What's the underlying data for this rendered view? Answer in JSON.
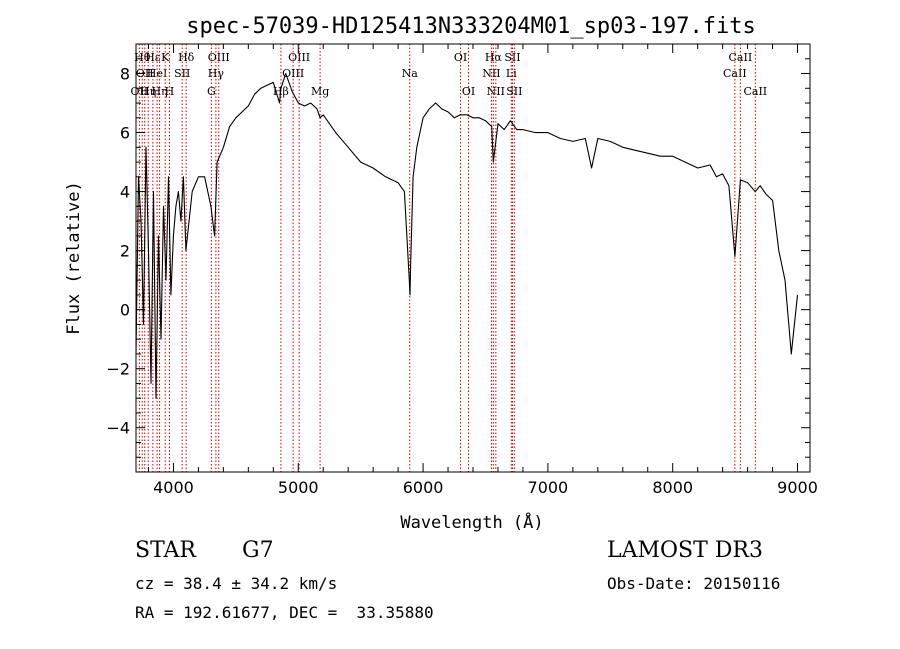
{
  "chart_data": {
    "type": "line",
    "title": "spec-57039-HD125413N333204M01_sp03-197.fits",
    "xlabel": "Wavelength (Å)",
    "ylabel": "Flux (relative)",
    "xlim": [
      3700,
      9100
    ],
    "ylim": [
      -5.5,
      9.0
    ],
    "xticks": [
      4000,
      5000,
      6000,
      7000,
      8000,
      9000
    ],
    "yticks": [
      -4,
      -2,
      0,
      2,
      4,
      6,
      8
    ],
    "grid": false,
    "legend": "none",
    "line_color": "#000000",
    "marker_color": "#cc0000",
    "series": [
      {
        "x": [
          3700,
          3720,
          3740,
          3760,
          3780,
          3800,
          3820,
          3840,
          3860,
          3880,
          3900,
          3920,
          3940,
          3960,
          3980,
          4000,
          4020,
          4040,
          4060,
          4080,
          4100,
          4150,
          4200,
          4250,
          4300,
          4330,
          4350,
          4400,
          4450,
          4500,
          4550,
          4600,
          4650,
          4700,
          4750,
          4800,
          4850,
          4861,
          4900,
          4950,
          5000,
          5050,
          5100,
          5150,
          5175,
          5200,
          5300,
          5400,
          5500,
          5600,
          5700,
          5800,
          5850,
          5890,
          5895,
          5900,
          5920,
          5950,
          6000,
          6050,
          6100,
          6150,
          6200,
          6250,
          6300,
          6350,
          6400,
          6450,
          6500,
          6550,
          6563,
          6600,
          6650,
          6700,
          6750,
          6800,
          6900,
          7000,
          7100,
          7200,
          7300,
          7350,
          7400,
          7500,
          7600,
          7700,
          7800,
          7900,
          8000,
          8100,
          8200,
          8300,
          8350,
          8400,
          8450,
          8498,
          8542,
          8600,
          8662,
          8700,
          8750,
          8800,
          8850,
          8900,
          8950,
          9000
        ],
        "y": [
          -1.5,
          4.5,
          3.0,
          -0.5,
          5.5,
          2.0,
          -2.5,
          4.0,
          -3.0,
          2.5,
          -1.0,
          3.5,
          1.0,
          4.5,
          0.5,
          2.5,
          3.5,
          4.0,
          3.0,
          4.5,
          2.0,
          4.0,
          4.5,
          4.5,
          3.5,
          2.5,
          5.0,
          5.5,
          6.2,
          6.5,
          6.7,
          6.9,
          7.3,
          7.5,
          7.6,
          7.7,
          7.0,
          7.5,
          8.0,
          7.4,
          7.0,
          6.9,
          7.0,
          6.8,
          6.5,
          6.6,
          6.0,
          5.5,
          5.0,
          4.8,
          4.5,
          4.3,
          4.0,
          1.0,
          0.5,
          1.5,
          4.5,
          5.5,
          6.5,
          6.8,
          7.0,
          6.8,
          6.7,
          6.5,
          6.6,
          6.6,
          6.5,
          6.5,
          6.4,
          6.2,
          5.0,
          6.3,
          6.1,
          6.4,
          6.1,
          6.1,
          6.0,
          6.0,
          5.8,
          5.7,
          5.8,
          4.8,
          5.8,
          5.7,
          5.5,
          5.4,
          5.3,
          5.2,
          5.2,
          5.0,
          4.8,
          4.9,
          4.5,
          4.6,
          4.2,
          1.8,
          4.4,
          4.3,
          4.0,
          4.2,
          3.9,
          3.7,
          2.0,
          1.0,
          -1.5,
          0.5
        ]
      }
    ],
    "line_markers": [
      {
        "x": 3727,
        "label": "OII",
        "row": 3
      },
      {
        "x": 3750,
        "label": "Hθ",
        "row": 1
      },
      {
        "x": 3770,
        "label": "OII",
        "row": 2
      },
      {
        "x": 3798,
        "label": "Hη",
        "row": 3
      },
      {
        "x": 3835,
        "label": "Hε",
        "row": 1
      },
      {
        "x": 3869,
        "label": "HeI",
        "row": 2
      },
      {
        "x": 3889,
        "label": "Hη",
        "row": 3
      },
      {
        "x": 3934,
        "label": "K",
        "row": 1
      },
      {
        "x": 3968,
        "label": "H",
        "row": 3
      },
      {
        "x": 4070,
        "label": "SII",
        "row": 2
      },
      {
        "x": 4102,
        "label": "Hδ",
        "row": 1
      },
      {
        "x": 4304,
        "label": "G",
        "row": 3
      },
      {
        "x": 4340,
        "label": "Hγ",
        "row": 2
      },
      {
        "x": 4363,
        "label": "OIII",
        "row": 1
      },
      {
        "x": 4861,
        "label": "Hβ",
        "row": 3
      },
      {
        "x": 4959,
        "label": "OIII",
        "row": 2
      },
      {
        "x": 5007,
        "label": "OIII",
        "row": 1
      },
      {
        "x": 5175,
        "label": "Mg",
        "row": 3
      },
      {
        "x": 5893,
        "label": "Na",
        "row": 2
      },
      {
        "x": 6300,
        "label": "OI",
        "row": 1
      },
      {
        "x": 6364,
        "label": "OI",
        "row": 3
      },
      {
        "x": 6548,
        "label": "NII",
        "row": 2
      },
      {
        "x": 6563,
        "label": "Hα",
        "row": 1
      },
      {
        "x": 6583,
        "label": "NII",
        "row": 3
      },
      {
        "x": 6707,
        "label": "Li",
        "row": 2
      },
      {
        "x": 6716,
        "label": "SII",
        "row": 1
      },
      {
        "x": 6731,
        "label": "SII",
        "row": 3
      },
      {
        "x": 8498,
        "label": "CaII",
        "row": 2
      },
      {
        "x": 8542,
        "label": "CaII",
        "row": 1
      },
      {
        "x": 8662,
        "label": "CaII",
        "row": 3
      }
    ]
  },
  "footer": {
    "object_class": "STAR",
    "subclass": "G7",
    "survey": "LAMOST DR3",
    "cz_line": "cz = 38.4 ± 34.2 km/s",
    "obs_date_line": "Obs-Date: 20150116",
    "radec_line": "RA = 192.61677, DEC =  33.35880"
  }
}
